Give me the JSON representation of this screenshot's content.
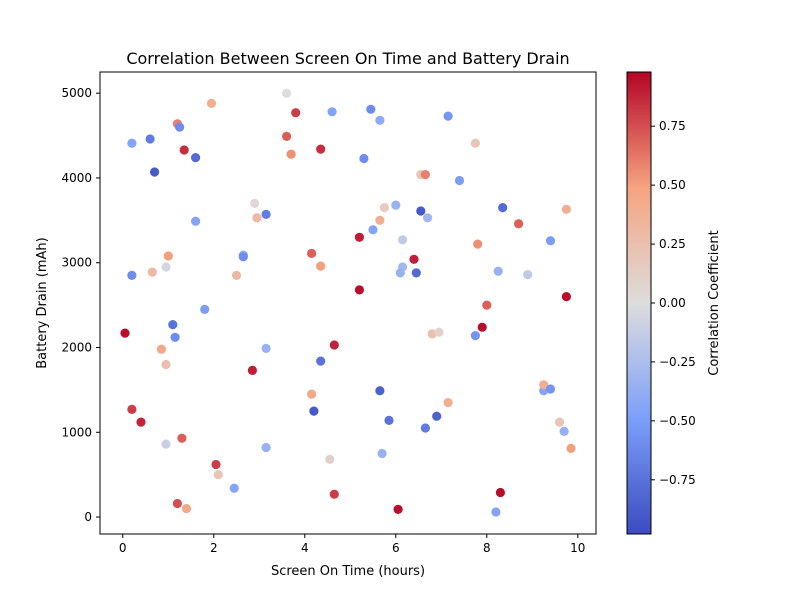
{
  "chart_data": {
    "type": "scatter",
    "title": "Correlation Between Screen On Time and Battery Drain",
    "xlabel": "Screen On Time (hours)",
    "ylabel": "Battery Drain (mAh)",
    "xlim": [
      -0.5,
      10.4
    ],
    "ylim": [
      -200,
      5250
    ],
    "xticks": [
      0,
      2,
      4,
      6,
      8,
      10
    ],
    "xtick_labels": [
      "0",
      "2",
      "4",
      "6",
      "8",
      "10"
    ],
    "yticks": [
      0,
      1000,
      2000,
      3000,
      4000,
      5000
    ],
    "ytick_labels": [
      "0",
      "1000",
      "2000",
      "3000",
      "4000",
      "5000"
    ],
    "grid": false,
    "colormap": "coolwarm",
    "colorbar": {
      "label": "Correlation Coefficient",
      "range": [
        -0.98,
        0.98
      ],
      "ticks": [
        -0.75,
        -0.5,
        -0.25,
        0.0,
        0.25,
        0.5,
        0.75
      ],
      "tick_labels": [
        "−0.75",
        "−0.50",
        "−0.25",
        "0.00",
        "0.25",
        "0.50",
        "0.75"
      ]
    },
    "points": [
      {
        "x": 0.05,
        "y": 2170,
        "c": 0.95
      },
      {
        "x": 0.2,
        "y": 4410,
        "c": -0.45
      },
      {
        "x": 0.2,
        "y": 2850,
        "c": -0.6
      },
      {
        "x": 0.2,
        "y": 1270,
        "c": 0.8
      },
      {
        "x": 0.4,
        "y": 1120,
        "c": 0.88
      },
      {
        "x": 0.6,
        "y": 4460,
        "c": -0.7
      },
      {
        "x": 0.65,
        "y": 2890,
        "c": 0.3
      },
      {
        "x": 0.7,
        "y": 4070,
        "c": -0.9
      },
      {
        "x": 0.85,
        "y": 1980,
        "c": 0.45
      },
      {
        "x": 0.95,
        "y": 2950,
        "c": -0.05
      },
      {
        "x": 0.95,
        "y": 1800,
        "c": 0.25
      },
      {
        "x": 0.95,
        "y": 860,
        "c": -0.1
      },
      {
        "x": 1.0,
        "y": 3080,
        "c": 0.5
      },
      {
        "x": 1.1,
        "y": 2270,
        "c": -0.75
      },
      {
        "x": 1.15,
        "y": 2120,
        "c": -0.6
      },
      {
        "x": 1.2,
        "y": 4640,
        "c": 0.6
      },
      {
        "x": 1.25,
        "y": 4600,
        "c": -0.6
      },
      {
        "x": 1.2,
        "y": 160,
        "c": 0.75
      },
      {
        "x": 1.3,
        "y": 930,
        "c": 0.7
      },
      {
        "x": 1.35,
        "y": 4330,
        "c": 0.85
      },
      {
        "x": 1.4,
        "y": 100,
        "c": 0.45
      },
      {
        "x": 1.6,
        "y": 4240,
        "c": -0.8
      },
      {
        "x": 1.6,
        "y": 3490,
        "c": -0.45
      },
      {
        "x": 1.8,
        "y": 2450,
        "c": -0.5
      },
      {
        "x": 1.95,
        "y": 4880,
        "c": 0.4
      },
      {
        "x": 2.05,
        "y": 620,
        "c": 0.8
      },
      {
        "x": 2.1,
        "y": 500,
        "c": 0.2
      },
      {
        "x": 2.45,
        "y": 340,
        "c": -0.45
      },
      {
        "x": 2.5,
        "y": 2850,
        "c": 0.3
      },
      {
        "x": 2.65,
        "y": 3090,
        "c": -0.4
      },
      {
        "x": 2.65,
        "y": 3070,
        "c": -0.6
      },
      {
        "x": 2.85,
        "y": 1730,
        "c": 0.9
      },
      {
        "x": 2.9,
        "y": 3700,
        "c": 0.05
      },
      {
        "x": 2.95,
        "y": 3530,
        "c": 0.3
      },
      {
        "x": 3.15,
        "y": 3570,
        "c": -0.7
      },
      {
        "x": 3.15,
        "y": 1990,
        "c": -0.35
      },
      {
        "x": 3.15,
        "y": 820,
        "c": -0.35
      },
      {
        "x": 3.6,
        "y": 4490,
        "c": 0.7
      },
      {
        "x": 3.6,
        "y": 5000,
        "c": 0.0
      },
      {
        "x": 3.7,
        "y": 4280,
        "c": 0.55
      },
      {
        "x": 3.8,
        "y": 4770,
        "c": 0.8
      },
      {
        "x": 4.15,
        "y": 3110,
        "c": 0.7
      },
      {
        "x": 4.15,
        "y": 1450,
        "c": 0.45
      },
      {
        "x": 4.2,
        "y": 1250,
        "c": -0.9
      },
      {
        "x": 4.35,
        "y": 4340,
        "c": 0.85
      },
      {
        "x": 4.35,
        "y": 2960,
        "c": 0.5
      },
      {
        "x": 4.35,
        "y": 1840,
        "c": -0.75
      },
      {
        "x": 4.55,
        "y": 680,
        "c": 0.1
      },
      {
        "x": 4.6,
        "y": 4780,
        "c": -0.45
      },
      {
        "x": 4.65,
        "y": 2030,
        "c": 0.88
      },
      {
        "x": 4.65,
        "y": 270,
        "c": 0.8
      },
      {
        "x": 5.2,
        "y": 3300,
        "c": 0.9
      },
      {
        "x": 5.2,
        "y": 2680,
        "c": 0.95
      },
      {
        "x": 5.3,
        "y": 4230,
        "c": -0.6
      },
      {
        "x": 5.45,
        "y": 4810,
        "c": -0.6
      },
      {
        "x": 5.5,
        "y": 3390,
        "c": -0.45
      },
      {
        "x": 5.65,
        "y": 4680,
        "c": -0.4
      },
      {
        "x": 5.65,
        "y": 3500,
        "c": 0.4
      },
      {
        "x": 5.65,
        "y": 1490,
        "c": -0.85
      },
      {
        "x": 5.7,
        "y": 750,
        "c": -0.35
      },
      {
        "x": 5.75,
        "y": 3650,
        "c": 0.15
      },
      {
        "x": 5.85,
        "y": 1140,
        "c": -0.75
      },
      {
        "x": 6.0,
        "y": 3680,
        "c": -0.35
      },
      {
        "x": 6.05,
        "y": 90,
        "c": 0.95
      },
      {
        "x": 6.15,
        "y": 3270,
        "c": -0.15
      },
      {
        "x": 6.15,
        "y": 2950,
        "c": -0.3
      },
      {
        "x": 6.1,
        "y": 2880,
        "c": -0.35
      },
      {
        "x": 6.4,
        "y": 3040,
        "c": 0.9
      },
      {
        "x": 6.45,
        "y": 2880,
        "c": -0.8
      },
      {
        "x": 6.55,
        "y": 4040,
        "c": 0.2
      },
      {
        "x": 6.55,
        "y": 3610,
        "c": -0.9
      },
      {
        "x": 6.65,
        "y": 4040,
        "c": 0.6
      },
      {
        "x": 6.7,
        "y": 3530,
        "c": -0.3
      },
      {
        "x": 6.65,
        "y": 1050,
        "c": -0.7
      },
      {
        "x": 6.8,
        "y": 2160,
        "c": 0.25
      },
      {
        "x": 6.9,
        "y": 1190,
        "c": -0.85
      },
      {
        "x": 6.95,
        "y": 2180,
        "c": 0.1
      },
      {
        "x": 7.15,
        "y": 4730,
        "c": -0.55
      },
      {
        "x": 7.15,
        "y": 1350,
        "c": 0.4
      },
      {
        "x": 7.4,
        "y": 3970,
        "c": -0.5
      },
      {
        "x": 7.75,
        "y": 4410,
        "c": 0.2
      },
      {
        "x": 7.75,
        "y": 2140,
        "c": -0.55
      },
      {
        "x": 7.8,
        "y": 3220,
        "c": 0.55
      },
      {
        "x": 7.9,
        "y": 2240,
        "c": 0.95
      },
      {
        "x": 8.0,
        "y": 2500,
        "c": 0.7
      },
      {
        "x": 8.2,
        "y": 60,
        "c": -0.45
      },
      {
        "x": 8.25,
        "y": 2900,
        "c": -0.35
      },
      {
        "x": 8.3,
        "y": 290,
        "c": 0.95
      },
      {
        "x": 8.35,
        "y": 3650,
        "c": -0.8
      },
      {
        "x": 8.7,
        "y": 3460,
        "c": 0.7
      },
      {
        "x": 8.9,
        "y": 2860,
        "c": -0.15
      },
      {
        "x": 9.25,
        "y": 1490,
        "c": -0.45
      },
      {
        "x": 9.25,
        "y": 1560,
        "c": 0.4
      },
      {
        "x": 9.4,
        "y": 1510,
        "c": -0.55
      },
      {
        "x": 9.4,
        "y": 3260,
        "c": -0.5
      },
      {
        "x": 9.6,
        "y": 1120,
        "c": 0.2
      },
      {
        "x": 9.7,
        "y": 1010,
        "c": -0.35
      },
      {
        "x": 9.75,
        "y": 2600,
        "c": 0.95
      },
      {
        "x": 9.75,
        "y": 3630,
        "c": 0.4
      },
      {
        "x": 9.85,
        "y": 810,
        "c": 0.5
      }
    ]
  }
}
